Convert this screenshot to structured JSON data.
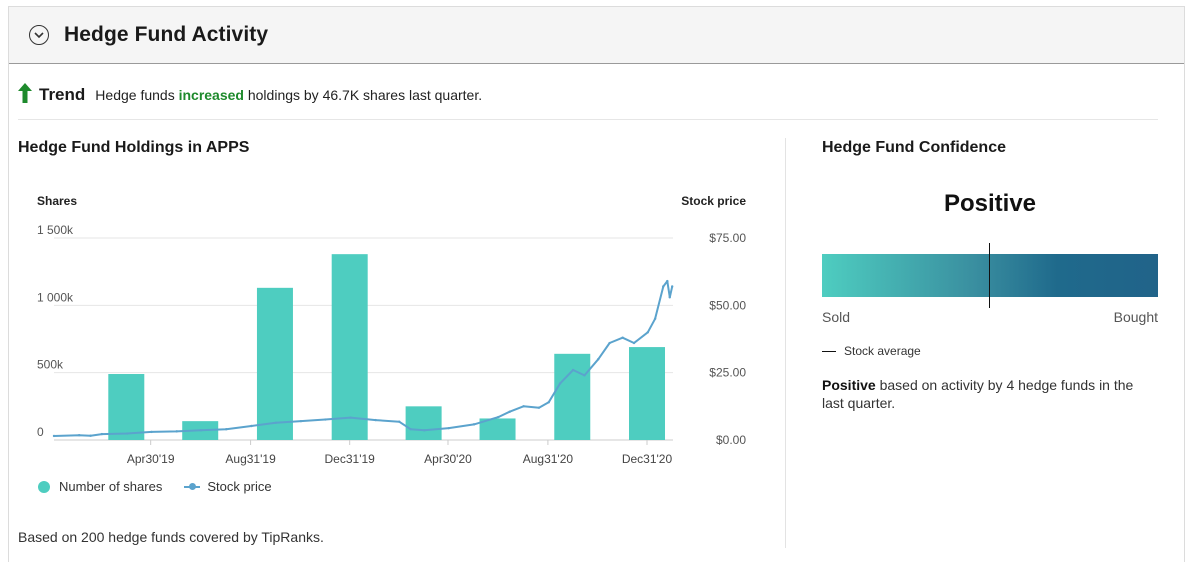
{
  "header": {
    "title": "Hedge Fund Activity",
    "collapse_icon": "chevron-down-circle-icon"
  },
  "trend": {
    "label": "Trend",
    "text_before": "Hedge funds",
    "highlight": "increased",
    "text_after": "holdings by 46.7K shares last quarter.",
    "arrow_icon": "arrow-up-icon",
    "colors": {
      "arrow": "#1e8a2c",
      "highlight": "#1e8a2c"
    }
  },
  "holdings": {
    "title": "Hedge Fund Holdings in APPS",
    "legend": [
      {
        "label": "Number of shares",
        "color": "#4ecdc0"
      },
      {
        "label": "Stock price",
        "color": "#5ba3cd"
      }
    ],
    "footnote": "Based on 200 hedge funds covered by TipRanks."
  },
  "chart_data": {
    "type": "bar",
    "left_axis_title": "Shares",
    "right_axis_title": "Stock price",
    "left_ticks": [
      "0",
      "500k",
      "1 000k",
      "1 500k"
    ],
    "right_ticks": [
      "$0.00",
      "$25.00",
      "$50.00",
      "$75.00"
    ],
    "x_tick_labels": [
      "Apr30'19",
      "Aug31'19",
      "Dec31'19",
      "Apr30'20",
      "Aug31'20",
      "Dec31'20"
    ],
    "ylim_shares": [
      0,
      1500000
    ],
    "ylim_price": [
      0,
      75
    ],
    "grid": true,
    "series": [
      {
        "name": "Number of shares",
        "kind": "bar",
        "color": "#4ecdc0",
        "x": [
          "2019-03-31",
          "2019-06-30",
          "2019-09-30",
          "2019-12-31",
          "2020-03-31",
          "2020-06-30",
          "2020-09-30",
          "2020-12-31"
        ],
        "values": [
          490000,
          140000,
          1130000,
          1380000,
          250000,
          160000,
          640000,
          690000
        ]
      },
      {
        "name": "Stock price",
        "kind": "line",
        "color": "#5ba3cd",
        "points": [
          [
            "2019-01-01",
            1.5
          ],
          [
            "2019-02-01",
            1.8
          ],
          [
            "2019-02-15",
            1.6
          ],
          [
            "2019-03-01",
            2.2
          ],
          [
            "2019-04-01",
            2.4
          ],
          [
            "2019-05-01",
            3.0
          ],
          [
            "2019-06-01",
            3.2
          ],
          [
            "2019-07-01",
            3.6
          ],
          [
            "2019-08-01",
            4.0
          ],
          [
            "2019-09-01",
            5.2
          ],
          [
            "2019-10-01",
            6.4
          ],
          [
            "2019-11-01",
            7.0
          ],
          [
            "2019-12-01",
            7.6
          ],
          [
            "2020-01-01",
            8.3
          ],
          [
            "2020-02-01",
            7.4
          ],
          [
            "2020-03-01",
            6.8
          ],
          [
            "2020-03-15",
            4.0
          ],
          [
            "2020-04-01",
            3.6
          ],
          [
            "2020-05-01",
            4.4
          ],
          [
            "2020-06-01",
            5.8
          ],
          [
            "2020-07-01",
            8.5
          ],
          [
            "2020-07-15",
            10.5
          ],
          [
            "2020-08-01",
            12.5
          ],
          [
            "2020-08-20",
            12.0
          ],
          [
            "2020-09-01",
            14.0
          ],
          [
            "2020-09-15",
            21.0
          ],
          [
            "2020-10-01",
            26.0
          ],
          [
            "2020-10-15",
            24.0
          ],
          [
            "2020-11-01",
            30.0
          ],
          [
            "2020-11-15",
            36.0
          ],
          [
            "2020-12-01",
            38.0
          ],
          [
            "2020-12-15",
            36.0
          ],
          [
            "2021-01-01",
            40.0
          ],
          [
            "2021-01-10",
            45.0
          ],
          [
            "2021-01-20",
            57.0
          ],
          [
            "2021-01-25",
            59.0
          ],
          [
            "2021-01-28",
            53.0
          ],
          [
            "2021-01-31",
            57.0
          ]
        ]
      }
    ]
  },
  "confidence": {
    "title": "Hedge Fund Confidence",
    "value": "Positive",
    "marker_position": 0.5,
    "min_label": "Sold",
    "max_label": "Bought",
    "stock_average_label": "Stock average",
    "desc_bold": "Positive",
    "desc_rest": " based on activity by 4 hedge funds in the last quarter."
  }
}
